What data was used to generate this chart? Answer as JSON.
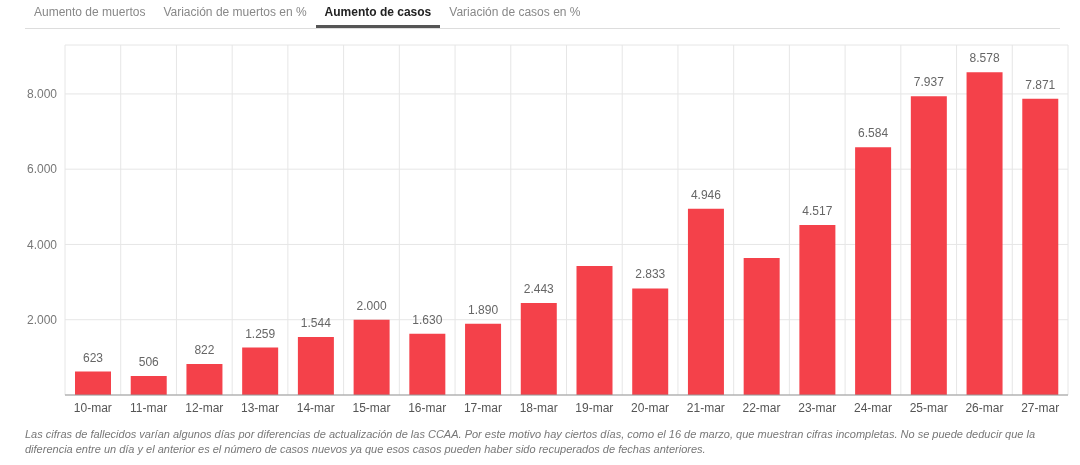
{
  "chart_data": {
    "type": "bar",
    "title": "Aumento de casos",
    "categories": [
      "10-mar",
      "11-mar",
      "12-mar",
      "13-mar",
      "14-mar",
      "15-mar",
      "16-mar",
      "17-mar",
      "18-mar",
      "19-mar",
      "20-mar",
      "21-mar",
      "22-mar",
      "23-mar",
      "24-mar",
      "25-mar",
      "26-mar",
      "27-mar"
    ],
    "values": [
      623,
      506,
      822,
      1259,
      1544,
      2000,
      1630,
      1890,
      2443,
      3430,
      2833,
      4946,
      3640,
      4517,
      6584,
      7937,
      8578,
      7871
    ],
    "value_labels": [
      "623",
      "506",
      "822",
      "1.259",
      "1.544",
      "2.000",
      "1.630",
      "1.890",
      "2.443",
      null,
      "2.833",
      "4.946",
      null,
      "4.517",
      "6.584",
      "7.937",
      "8.578",
      "7.871"
    ],
    "color": "#f4414a",
    "ylim": [
      0,
      9300
    ],
    "yticks": [
      {
        "value": 2000,
        "label": "2.000"
      },
      {
        "value": 4000,
        "label": "4.000"
      },
      {
        "value": 6000,
        "label": "6.000"
      },
      {
        "value": 8000,
        "label": "8.000"
      }
    ],
    "grid": true,
    "annotations": [
      "Aumento de muertos",
      "Variación de muertos en %",
      "Variación de casos en %",
      "Las cifras de fallecidos varían algunos días por diferencias de actualización de las CCAA. Por este motivo hay ciertos días, como el 16 de marzo, que muestran cifras incompletas. No se puede deducir que la diferencia entre un día y el anterior es el número de casos nuevos ya que esos casos pueden haber sido recuperados de fechas anteriores."
    ]
  }
}
